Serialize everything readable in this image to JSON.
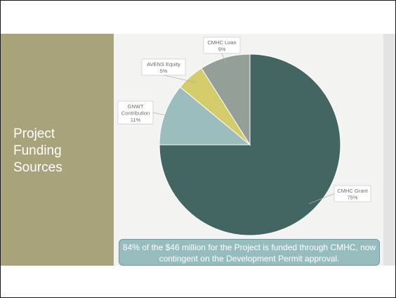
{
  "slide": {
    "title_lines": [
      "Project",
      "Funding",
      "Sources"
    ],
    "footnote": "84% of the $46 million for the Project is funded through CMHC, now contingent on the Development Permit approval."
  },
  "chart_data": {
    "type": "pie",
    "slices": [
      {
        "label_lines": [
          "CMHC Grant"
        ],
        "value": 75,
        "value_label": "75%",
        "color": "#446662"
      },
      {
        "label_lines": [
          "GNWT",
          "Contribution"
        ],
        "value": 11,
        "value_label": "11%",
        "color": "#9bbdbe"
      },
      {
        "label_lines": [
          "AVENS Equity"
        ],
        "value": 5,
        "value_label": "5%",
        "color": "#d4cc6a"
      },
      {
        "label_lines": [
          "CMHC Loan"
        ],
        "value": 9,
        "value_label": "9%",
        "color": "#949f97"
      }
    ],
    "start": "12 o'clock",
    "direction": "clockwise"
  },
  "colors": {
    "left_panel": "#a8a37a",
    "callout_fill": "#97bcbe"
  }
}
